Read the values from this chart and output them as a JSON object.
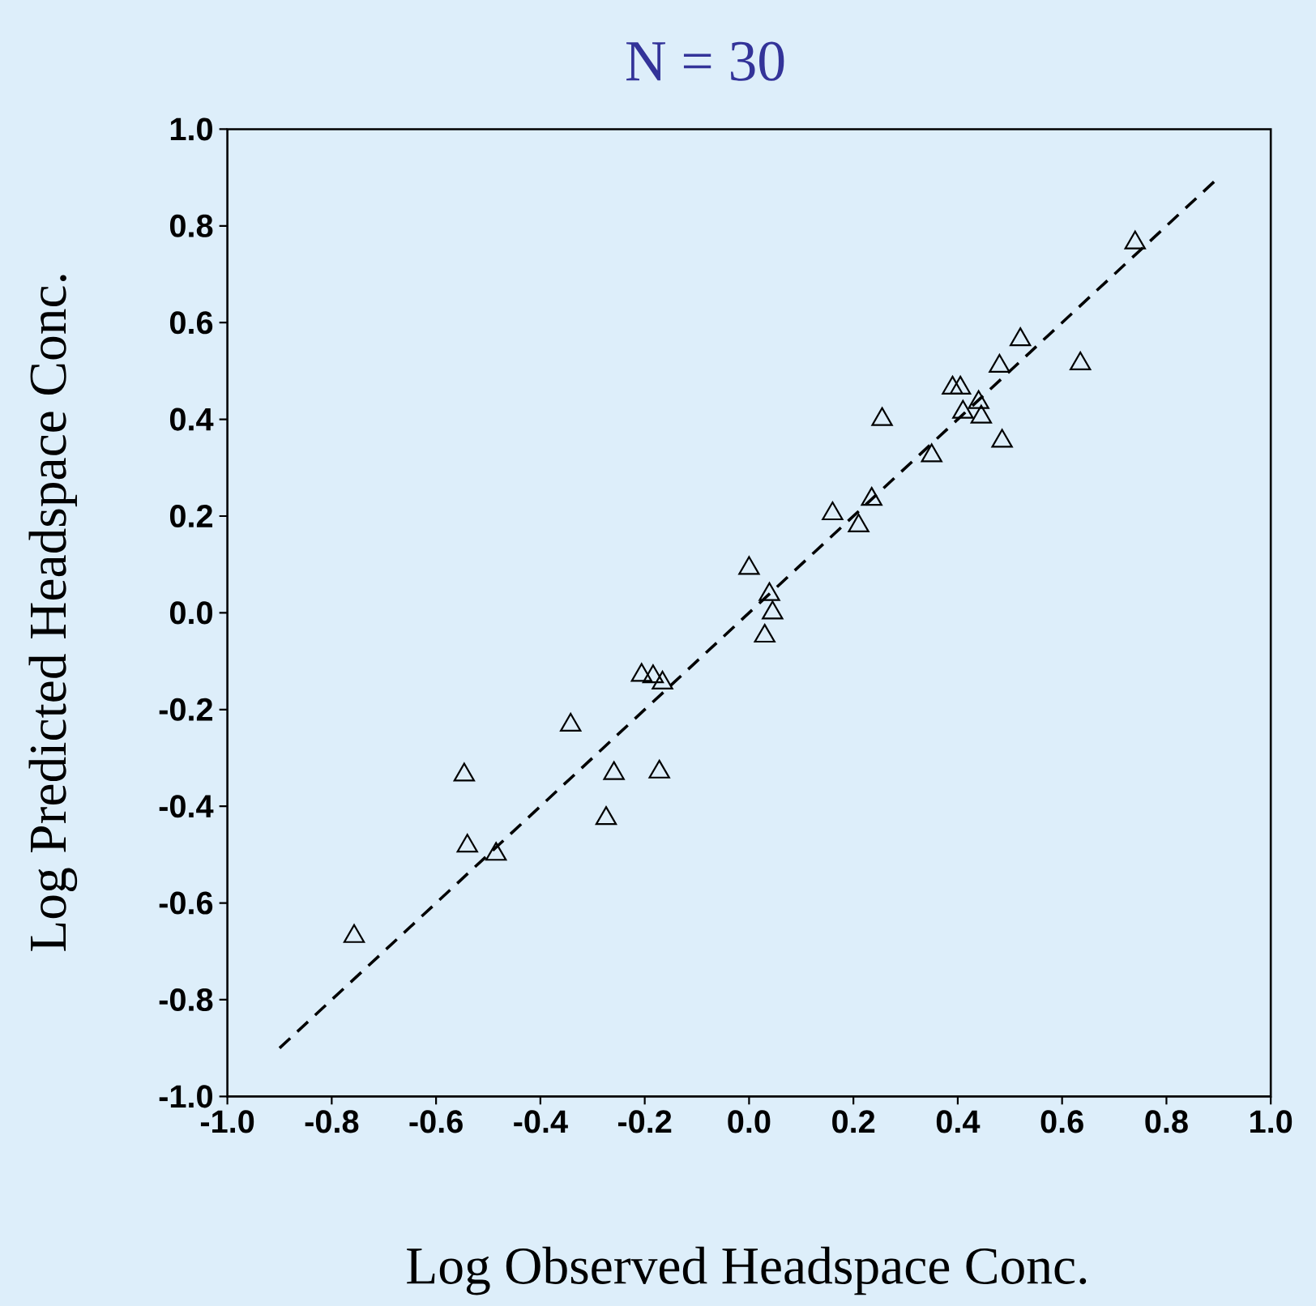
{
  "chart_data": {
    "type": "scatter",
    "title": "N = 30",
    "xlabel": "Log Observed Headspace Conc.",
    "ylabel": "Log Predicted Headspace Conc.",
    "marker": "triangle",
    "xlim": [
      -1,
      1
    ],
    "ylim": [
      -1,
      1
    ],
    "xticks": [
      {
        "value": -1,
        "label": "-1.0"
      },
      -0.8,
      -0.6,
      -0.4,
      -0.2,
      {
        "value": 0,
        "label": "0.0"
      },
      0.2,
      0.4,
      0.6,
      0.8,
      {
        "value": 1,
        "label": "1.0"
      }
    ],
    "yticks": [
      {
        "value": -1,
        "label": "-1.0"
      },
      -0.8,
      -0.6,
      -0.4,
      -0.2,
      {
        "value": 0,
        "label": "0.0"
      },
      0.2,
      0.4,
      0.6,
      0.8,
      {
        "value": 1,
        "label": "1.0"
      }
    ],
    "series": [
      {
        "color": "#000000",
        "x": [
          -0.757,
          -0.546,
          -0.54,
          -0.485,
          -0.342,
          -0.259,
          -0.274,
          -0.172,
          -0.206,
          -0.184,
          -0.166,
          0.0,
          0.039,
          0.045,
          0.03,
          0.16,
          0.21,
          0.235,
          0.255,
          0.35,
          0.39,
          0.405,
          0.41,
          0.44,
          0.445,
          0.485,
          0.48,
          0.52,
          0.635,
          0.74
        ],
        "values": [
          -0.669,
          -0.335,
          -0.482,
          -0.499,
          -0.232,
          -0.332,
          -0.425,
          -0.329,
          -0.129,
          -0.132,
          -0.145,
          0.092,
          0.038,
          0.0,
          -0.048,
          0.205,
          0.18,
          0.235,
          0.4,
          0.325,
          0.465,
          0.465,
          0.415,
          0.435,
          0.405,
          0.355,
          0.51,
          0.565,
          0.515,
          0.765
        ]
      },
      {
        "type": "line",
        "marker": "none",
        "line_style": "dashed",
        "color": "#000000",
        "x": [
          -0.9,
          0.9
        ],
        "values": [
          -0.9,
          0.9
        ]
      }
    ]
  }
}
